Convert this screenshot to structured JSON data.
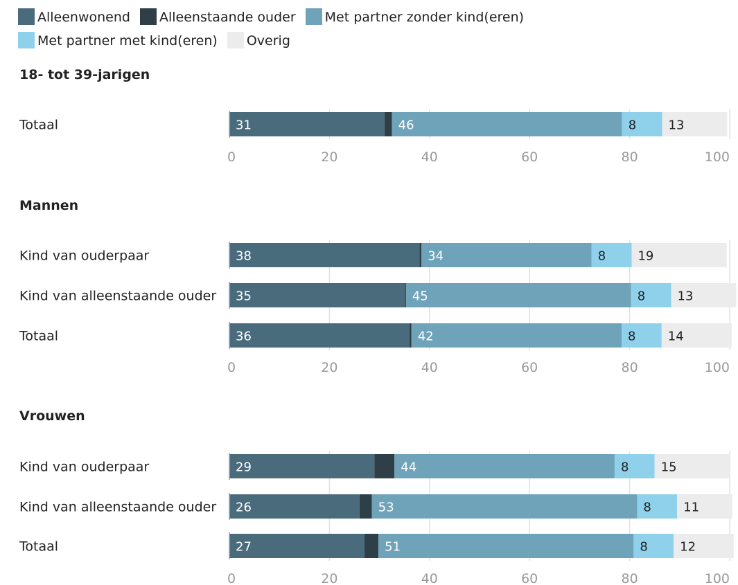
{
  "legend": [
    {
      "label": "Alleenwonend",
      "color": "#4a6b7c"
    },
    {
      "label": "Alleenstaande ouder",
      "color": "#2f3f48"
    },
    {
      "label": "Met partner zonder kind(eren)",
      "color": "#6fa3b9"
    },
    {
      "label": "Met partner met kind(eren)",
      "color": "#8fd1eb"
    },
    {
      "label": "Overig",
      "color": "#ececec"
    }
  ],
  "chart_data": [
    {
      "type": "bar",
      "orientation": "horizontal",
      "stacked": true,
      "title": "18- tot 39-jarigen",
      "categories": [
        "Totaal"
      ],
      "xlim": [
        0,
        100
      ],
      "xticks": [
        0,
        20,
        40,
        60,
        80,
        100
      ],
      "series": [
        {
          "name": "Alleenwonend",
          "values": [
            31
          ],
          "shown_labels": [
            "31"
          ]
        },
        {
          "name": "Alleenstaande ouder",
          "values": [
            1.5
          ],
          "shown_labels": [
            ""
          ]
        },
        {
          "name": "Met partner zonder kind(eren)",
          "values": [
            46
          ],
          "shown_labels": [
            "46"
          ]
        },
        {
          "name": "Met partner met kind(eren)",
          "values": [
            8
          ],
          "shown_labels": [
            "8"
          ]
        },
        {
          "name": "Overig",
          "values": [
            13
          ],
          "shown_labels": [
            "13"
          ]
        }
      ]
    },
    {
      "type": "bar",
      "orientation": "horizontal",
      "stacked": true,
      "title": "Mannen",
      "categories": [
        "Kind van ouderpaar",
        "Kind van alleenstaande ouder",
        "Totaal"
      ],
      "xlim": [
        0,
        100
      ],
      "xticks": [
        0,
        20,
        40,
        60,
        80,
        100
      ],
      "series": [
        {
          "name": "Alleenwonend",
          "values": [
            38,
            35,
            36
          ],
          "shown_labels": [
            "38",
            "35",
            "36"
          ]
        },
        {
          "name": "Alleenstaande ouder",
          "values": [
            0.4,
            0.3,
            0.4
          ],
          "shown_labels": [
            "",
            "",
            ""
          ]
        },
        {
          "name": "Met partner zonder kind(eren)",
          "values": [
            34,
            45,
            42
          ],
          "shown_labels": [
            "34",
            "45",
            "42"
          ]
        },
        {
          "name": "Met partner met kind(eren)",
          "values": [
            8,
            8,
            8
          ],
          "shown_labels": [
            "8",
            "8",
            "8"
          ]
        },
        {
          "name": "Overig",
          "values": [
            19,
            13,
            14
          ],
          "shown_labels": [
            "19",
            "13",
            "14"
          ]
        }
      ]
    },
    {
      "type": "bar",
      "orientation": "horizontal",
      "stacked": true,
      "title": "Vrouwen",
      "categories": [
        "Kind van ouderpaar",
        "Kind van alleenstaande ouder",
        "Totaal"
      ],
      "xlim": [
        0,
        100
      ],
      "xticks": [
        0,
        20,
        40,
        60,
        80,
        100
      ],
      "series": [
        {
          "name": "Alleenwonend",
          "values": [
            29,
            26,
            27
          ],
          "shown_labels": [
            "29",
            "26",
            "27"
          ]
        },
        {
          "name": "Alleenstaande ouder",
          "values": [
            4,
            2.5,
            2.8
          ],
          "shown_labels": [
            "",
            "",
            ""
          ]
        },
        {
          "name": "Met partner zonder kind(eren)",
          "values": [
            44,
            53,
            51
          ],
          "shown_labels": [
            "44",
            "53",
            "51"
          ]
        },
        {
          "name": "Met partner met kind(eren)",
          "values": [
            8,
            8,
            8
          ],
          "shown_labels": [
            "8",
            "8",
            "8"
          ]
        },
        {
          "name": "Overig",
          "values": [
            15,
            11,
            12
          ],
          "shown_labels": [
            "15",
            "11",
            "12"
          ]
        }
      ]
    }
  ]
}
